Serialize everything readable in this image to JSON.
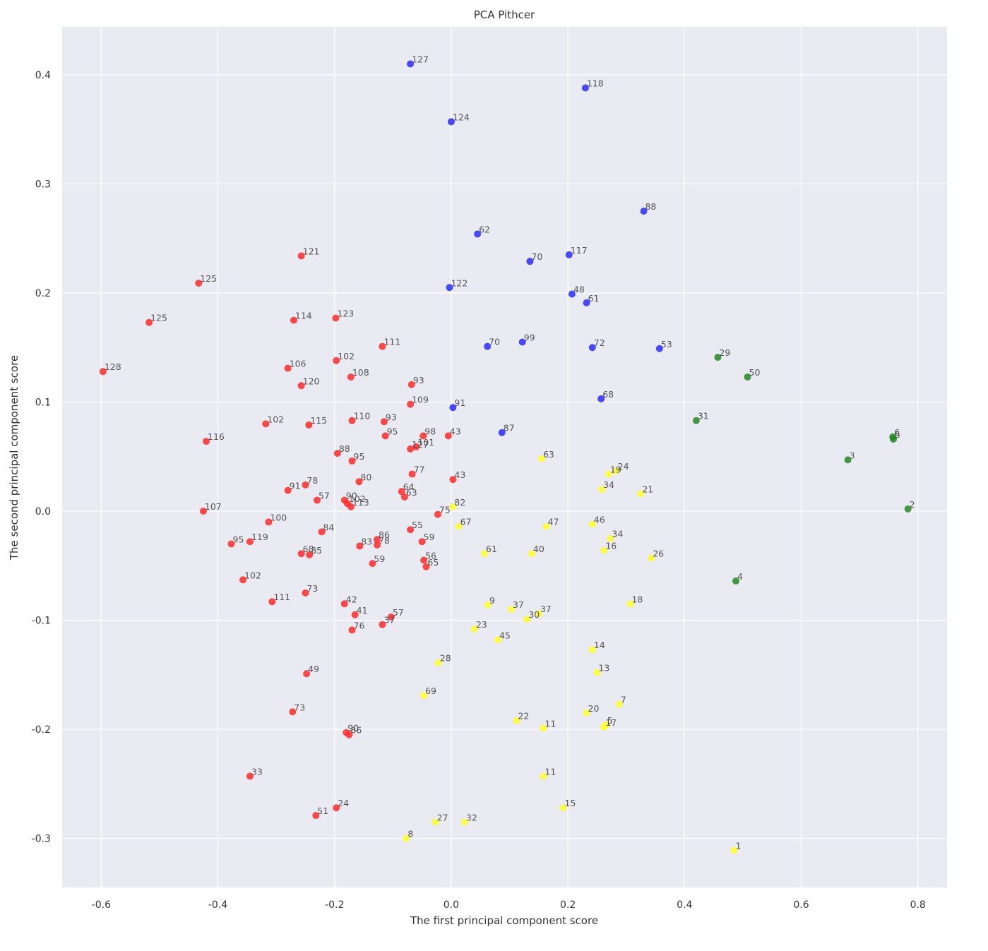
{
  "chart_data": {
    "type": "scatter",
    "title": "PCA Pithcer",
    "xlabel": "The first principal component score",
    "ylabel": "The second principal component score",
    "xlim": [
      -0.667,
      0.85
    ],
    "ylim": [
      -0.345,
      0.444
    ],
    "xticks": [
      -0.6,
      -0.4,
      -0.2,
      0.0,
      0.2,
      0.4,
      0.6,
      0.8
    ],
    "xtick_labels": [
      "-0.6",
      "-0.4",
      "-0.2",
      "0.0",
      "0.2",
      "0.4",
      "0.6",
      "0.8"
    ],
    "yticks": [
      -0.3,
      -0.2,
      -0.1,
      0.0,
      0.1,
      0.2,
      0.3,
      0.4
    ],
    "ytick_labels": [
      "-0.3",
      "-0.2",
      "-0.1",
      "0.0",
      "0.1",
      "0.2",
      "0.3",
      "0.4"
    ],
    "grid": true,
    "colors": {
      "background": "#eaeaf2",
      "grid": "#ffffff",
      "red": "#ff2a2a",
      "blue": "#2a2aff",
      "yellow": "#ffff2a",
      "green": "#228b22"
    },
    "series": [
      {
        "color": "red",
        "points": [
          {
            "x": -0.07,
            "y": 0.057,
            "label": "127"
          },
          {
            "x": -0.597,
            "y": 0.128,
            "label": "128"
          },
          {
            "x": -0.518,
            "y": 0.173,
            "label": "125"
          },
          {
            "x": -0.433,
            "y": 0.209,
            "label": "125"
          },
          {
            "x": -0.257,
            "y": 0.234,
            "label": "121"
          },
          {
            "x": -0.27,
            "y": 0.175,
            "label": "114"
          },
          {
            "x": -0.198,
            "y": 0.177,
            "label": "123"
          },
          {
            "x": -0.118,
            "y": 0.151,
            "label": "111"
          },
          {
            "x": -0.28,
            "y": 0.131,
            "label": "106"
          },
          {
            "x": -0.197,
            "y": 0.138,
            "label": "102"
          },
          {
            "x": -0.172,
            "y": 0.123,
            "label": "108"
          },
          {
            "x": -0.257,
            "y": 0.115,
            "label": "120"
          },
          {
            "x": -0.068,
            "y": 0.116,
            "label": "93"
          },
          {
            "x": -0.07,
            "y": 0.098,
            "label": "109"
          },
          {
            "x": -0.318,
            "y": 0.08,
            "label": "102"
          },
          {
            "x": -0.244,
            "y": 0.079,
            "label": "115"
          },
          {
            "x": -0.17,
            "y": 0.083,
            "label": "110"
          },
          {
            "x": -0.115,
            "y": 0.082,
            "label": "93"
          },
          {
            "x": -0.113,
            "y": 0.069,
            "label": "95"
          },
          {
            "x": -0.048,
            "y": 0.069,
            "label": "98"
          },
          {
            "x": -0.005,
            "y": 0.069,
            "label": "43"
          },
          {
            "x": -0.06,
            "y": 0.059,
            "label": "101"
          },
          {
            "x": -0.42,
            "y": 0.064,
            "label": "116"
          },
          {
            "x": -0.195,
            "y": 0.053,
            "label": "88"
          },
          {
            "x": -0.17,
            "y": 0.046,
            "label": "95"
          },
          {
            "x": -0.067,
            "y": 0.034,
            "label": "77"
          },
          {
            "x": 0.003,
            "y": 0.029,
            "label": "43"
          },
          {
            "x": -0.158,
            "y": 0.027,
            "label": "80"
          },
          {
            "x": -0.25,
            "y": 0.024,
            "label": "78"
          },
          {
            "x": -0.28,
            "y": 0.019,
            "label": "91"
          },
          {
            "x": -0.085,
            "y": 0.018,
            "label": "64"
          },
          {
            "x": -0.08,
            "y": 0.013,
            "label": "63"
          },
          {
            "x": -0.23,
            "y": 0.01,
            "label": "57"
          },
          {
            "x": -0.183,
            "y": 0.01,
            "label": "90"
          },
          {
            "x": -0.178,
            "y": 0.007,
            "label": "102"
          },
          {
            "x": -0.172,
            "y": 0.004,
            "label": "113"
          },
          {
            "x": -0.425,
            "y": 0.0,
            "label": "107"
          },
          {
            "x": -0.023,
            "y": -0.003,
            "label": "75"
          },
          {
            "x": -0.313,
            "y": -0.01,
            "label": "100"
          },
          {
            "x": -0.222,
            "y": -0.019,
            "label": "84"
          },
          {
            "x": -0.07,
            "y": -0.017,
            "label": "55"
          },
          {
            "x": -0.127,
            "y": -0.026,
            "label": "86"
          },
          {
            "x": -0.127,
            "y": -0.031,
            "label": "78"
          },
          {
            "x": -0.157,
            "y": -0.032,
            "label": "83"
          },
          {
            "x": -0.05,
            "y": -0.028,
            "label": "59"
          },
          {
            "x": -0.377,
            "y": -0.03,
            "label": "95"
          },
          {
            "x": -0.345,
            "y": -0.028,
            "label": "119"
          },
          {
            "x": -0.257,
            "y": -0.039,
            "label": "68"
          },
          {
            "x": -0.243,
            "y": -0.04,
            "label": "85"
          },
          {
            "x": -0.135,
            "y": -0.048,
            "label": "59"
          },
          {
            "x": -0.047,
            "y": -0.045,
            "label": "56"
          },
          {
            "x": -0.043,
            "y": -0.051,
            "label": "65"
          },
          {
            "x": -0.357,
            "y": -0.063,
            "label": "102"
          },
          {
            "x": -0.25,
            "y": -0.075,
            "label": "73"
          },
          {
            "x": -0.307,
            "y": -0.083,
            "label": "111"
          },
          {
            "x": -0.183,
            "y": -0.085,
            "label": "42"
          },
          {
            "x": -0.165,
            "y": -0.095,
            "label": "41"
          },
          {
            "x": -0.103,
            "y": -0.097,
            "label": "57"
          },
          {
            "x": -0.118,
            "y": -0.104,
            "label": "37"
          },
          {
            "x": -0.17,
            "y": -0.109,
            "label": "76"
          },
          {
            "x": -0.248,
            "y": -0.149,
            "label": "49"
          },
          {
            "x": -0.272,
            "y": -0.184,
            "label": "73"
          },
          {
            "x": -0.18,
            "y": -0.203,
            "label": "90"
          },
          {
            "x": -0.175,
            "y": -0.205,
            "label": "86"
          },
          {
            "x": -0.345,
            "y": -0.243,
            "label": "33"
          },
          {
            "x": -0.197,
            "y": -0.272,
            "label": "24"
          },
          {
            "x": -0.232,
            "y": -0.279,
            "label": "51"
          }
        ]
      },
      {
        "color": "blue",
        "points": [
          {
            "x": -0.07,
            "y": 0.41,
            "label": "127"
          },
          {
            "x": 0.23,
            "y": 0.388,
            "label": "118"
          },
          {
            "x": 0.0,
            "y": 0.357,
            "label": "124"
          },
          {
            "x": 0.33,
            "y": 0.275,
            "label": "88"
          },
          {
            "x": 0.045,
            "y": 0.254,
            "label": "62"
          },
          {
            "x": 0.202,
            "y": 0.235,
            "label": "117"
          },
          {
            "x": 0.135,
            "y": 0.229,
            "label": "70"
          },
          {
            "x": -0.003,
            "y": 0.205,
            "label": "122"
          },
          {
            "x": 0.207,
            "y": 0.199,
            "label": "48"
          },
          {
            "x": 0.232,
            "y": 0.191,
            "label": "61"
          },
          {
            "x": 0.062,
            "y": 0.151,
            "label": "70"
          },
          {
            "x": 0.122,
            "y": 0.155,
            "label": "99"
          },
          {
            "x": 0.242,
            "y": 0.15,
            "label": "72"
          },
          {
            "x": 0.357,
            "y": 0.149,
            "label": "53"
          },
          {
            "x": 0.257,
            "y": 0.103,
            "label": "68"
          },
          {
            "x": 0.003,
            "y": 0.095,
            "label": "91"
          },
          {
            "x": 0.087,
            "y": 0.072,
            "label": "87"
          }
        ]
      },
      {
        "color": "yellow",
        "points": [
          {
            "x": 0.155,
            "y": 0.048,
            "label": "63"
          },
          {
            "x": 0.283,
            "y": 0.037,
            "label": "24"
          },
          {
            "x": 0.27,
            "y": 0.034,
            "label": "19"
          },
          {
            "x": 0.258,
            "y": 0.02,
            "label": "34"
          },
          {
            "x": 0.325,
            "y": 0.016,
            "label": "21"
          },
          {
            "x": 0.003,
            "y": 0.004,
            "label": "82"
          },
          {
            "x": 0.013,
            "y": -0.014,
            "label": "67"
          },
          {
            "x": 0.163,
            "y": -0.014,
            "label": "47"
          },
          {
            "x": 0.242,
            "y": -0.012,
            "label": "46"
          },
          {
            "x": 0.273,
            "y": -0.025,
            "label": "34"
          },
          {
            "x": 0.262,
            "y": -0.036,
            "label": "16"
          },
          {
            "x": 0.057,
            "y": -0.039,
            "label": "61"
          },
          {
            "x": 0.138,
            "y": -0.039,
            "label": "40"
          },
          {
            "x": 0.343,
            "y": -0.043,
            "label": "26"
          },
          {
            "x": 0.307,
            "y": -0.085,
            "label": "18"
          },
          {
            "x": 0.063,
            "y": -0.086,
            "label": "9"
          },
          {
            "x": 0.103,
            "y": -0.09,
            "label": "37"
          },
          {
            "x": 0.15,
            "y": -0.094,
            "label": "37"
          },
          {
            "x": 0.13,
            "y": -0.099,
            "label": "30"
          },
          {
            "x": 0.04,
            "y": -0.108,
            "label": "23"
          },
          {
            "x": 0.08,
            "y": -0.118,
            "label": "45"
          },
          {
            "x": 0.242,
            "y": -0.127,
            "label": "14"
          },
          {
            "x": -0.022,
            "y": -0.139,
            "label": "28"
          },
          {
            "x": 0.25,
            "y": -0.148,
            "label": "13"
          },
          {
            "x": -0.047,
            "y": -0.169,
            "label": "69"
          },
          {
            "x": 0.288,
            "y": -0.177,
            "label": "7"
          },
          {
            "x": 0.232,
            "y": -0.185,
            "label": "20"
          },
          {
            "x": 0.112,
            "y": -0.192,
            "label": "22"
          },
          {
            "x": 0.158,
            "y": -0.199,
            "label": "11"
          },
          {
            "x": 0.265,
            "y": -0.196,
            "label": "5"
          },
          {
            "x": 0.262,
            "y": -0.198,
            "label": "17"
          },
          {
            "x": 0.158,
            "y": -0.243,
            "label": "11"
          },
          {
            "x": 0.192,
            "y": -0.272,
            "label": "15"
          },
          {
            "x": -0.027,
            "y": -0.285,
            "label": "27"
          },
          {
            "x": 0.023,
            "y": -0.285,
            "label": "32"
          },
          {
            "x": -0.077,
            "y": -0.3,
            "label": "8"
          },
          {
            "x": 0.485,
            "y": -0.311,
            "label": "1"
          }
        ]
      },
      {
        "color": "green",
        "points": [
          {
            "x": 0.457,
            "y": 0.141,
            "label": "29"
          },
          {
            "x": 0.508,
            "y": 0.123,
            "label": "50"
          },
          {
            "x": 0.42,
            "y": 0.083,
            "label": "31"
          },
          {
            "x": 0.757,
            "y": 0.068,
            "label": "6"
          },
          {
            "x": 0.758,
            "y": 0.066,
            "label": "5"
          },
          {
            "x": 0.68,
            "y": 0.047,
            "label": "3"
          },
          {
            "x": 0.783,
            "y": 0.002,
            "label": "2"
          },
          {
            "x": 0.488,
            "y": -0.064,
            "label": "4"
          }
        ]
      }
    ]
  }
}
